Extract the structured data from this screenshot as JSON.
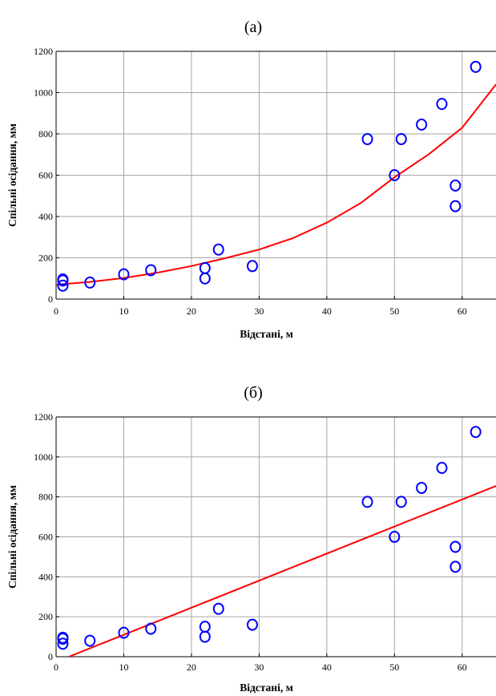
{
  "chart_data": [
    {
      "type": "scatter",
      "panel_label": "(а)",
      "xlabel": "Відстані, м",
      "ylabel": "Спільні осідання, мм",
      "xlim": [
        0,
        65
      ],
      "ylim": [
        0,
        1200
      ],
      "xticks": [
        0,
        10,
        20,
        30,
        40,
        50,
        60
      ],
      "yticks": [
        0,
        200,
        400,
        600,
        800,
        1000,
        1200
      ],
      "grid": true,
      "colors": {
        "points": "#0000ff",
        "line": "#ff0000"
      },
      "series": [
        {
          "kind": "points",
          "x": [
            1,
            1,
            1,
            5,
            10,
            14,
            22,
            22,
            24,
            29,
            46,
            50,
            51,
            54,
            57,
            59,
            59,
            62
          ],
          "y": [
            65,
            90,
            95,
            80,
            120,
            140,
            100,
            150,
            240,
            160,
            775,
            600,
            775,
            845,
            945,
            550,
            450,
            1125
          ]
        },
        {
          "kind": "fit",
          "x": [
            0,
            5,
            10,
            15,
            20,
            25,
            30,
            35,
            40,
            45,
            50,
            55,
            60,
            65
          ],
          "y": [
            70,
            83,
            102,
            128,
            160,
            198,
            240,
            295,
            370,
            465,
            590,
            700,
            830,
            1040
          ]
        }
      ]
    },
    {
      "type": "scatter",
      "panel_label": "(б)",
      "xlabel": "Відстані, м",
      "ylabel": "Спільні осідання, мм",
      "xlim": [
        0,
        65
      ],
      "ylim": [
        0,
        1200
      ],
      "xticks": [
        0,
        10,
        20,
        30,
        40,
        50,
        60
      ],
      "yticks": [
        0,
        200,
        400,
        600,
        800,
        1000,
        1200
      ],
      "grid": true,
      "colors": {
        "points": "#0000ff",
        "line": "#ff0000"
      },
      "series": [
        {
          "kind": "points",
          "x": [
            1,
            1,
            1,
            5,
            10,
            14,
            22,
            22,
            24,
            29,
            46,
            50,
            51,
            54,
            57,
            59,
            59,
            62
          ],
          "y": [
            65,
            90,
            95,
            80,
            120,
            140,
            100,
            150,
            240,
            160,
            775,
            600,
            775,
            845,
            945,
            550,
            450,
            1125
          ]
        },
        {
          "kind": "fit",
          "x": [
            1.9,
            65
          ],
          "y": [
            0,
            855
          ]
        }
      ]
    }
  ]
}
